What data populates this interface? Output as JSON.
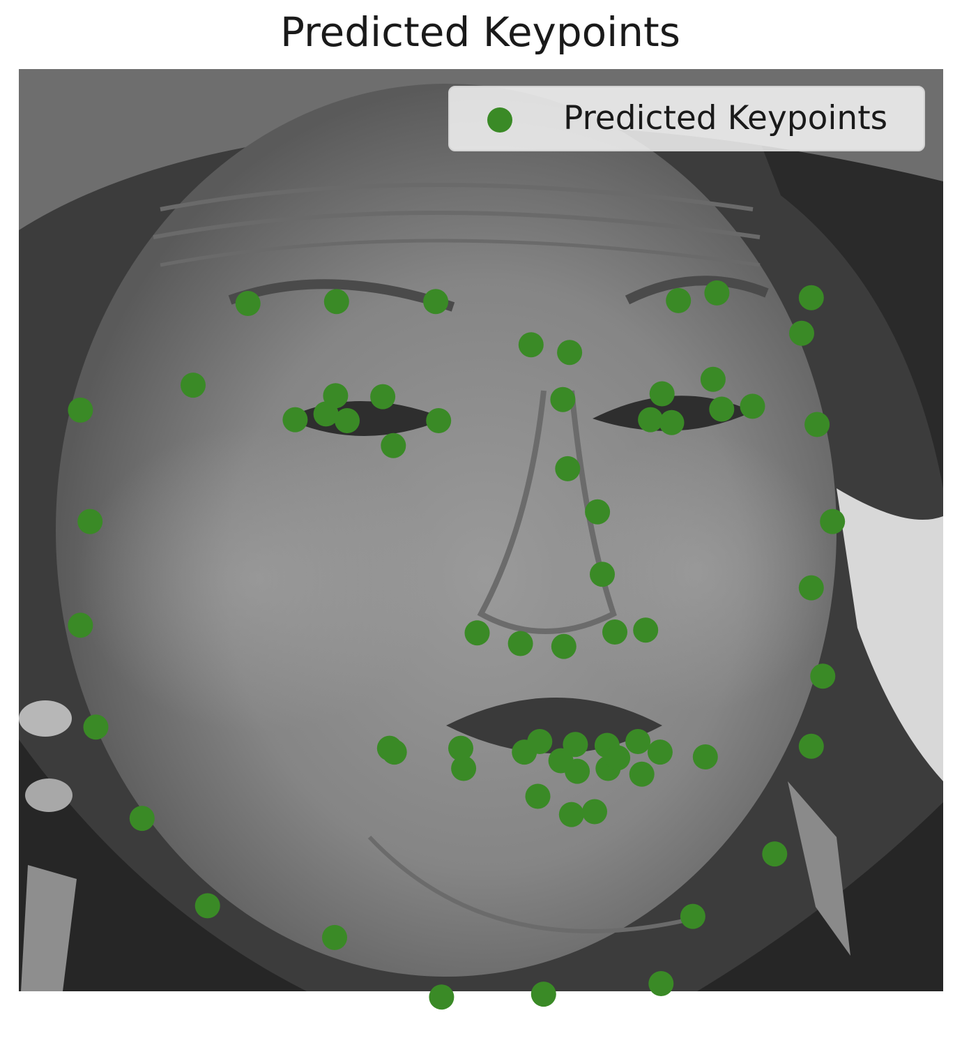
{
  "chart_data": {
    "type": "scatter",
    "title": "Predicted Keypoints",
    "xlabel": "",
    "ylabel": "",
    "xlim": [
      0,
      96
    ],
    "ylim": [
      96,
      0
    ],
    "axes_visible": false,
    "grid": false,
    "background": "grayscale face photograph",
    "legend": {
      "placement": "top-right",
      "entries": [
        "Predicted Keypoints"
      ]
    },
    "series": [
      {
        "name": "Predicted Keypoints",
        "color": "#3a8a26",
        "points": [
          [
            6.4,
            35.5
          ],
          [
            7.4,
            47.1
          ],
          [
            6.4,
            57.9
          ],
          [
            8.0,
            68.5
          ],
          [
            12.8,
            78.0
          ],
          [
            19.6,
            87.1
          ],
          [
            32.8,
            90.4
          ],
          [
            43.9,
            96.6
          ],
          [
            54.5,
            96.3
          ],
          [
            66.7,
            95.2
          ],
          [
            70.0,
            88.2
          ],
          [
            78.5,
            81.7
          ],
          [
            82.3,
            70.5
          ],
          [
            83.5,
            63.2
          ],
          [
            82.3,
            54.0
          ],
          [
            84.5,
            47.1
          ],
          [
            82.9,
            37.0
          ],
          [
            23.8,
            24.4
          ],
          [
            33.0,
            24.2
          ],
          [
            43.3,
            24.2
          ],
          [
            53.2,
            28.7
          ],
          [
            57.2,
            29.5
          ],
          [
            68.5,
            24.1
          ],
          [
            72.5,
            23.3
          ],
          [
            82.3,
            23.8
          ],
          [
            81.3,
            27.5
          ],
          [
            56.5,
            34.4
          ],
          [
            57.0,
            41.6
          ],
          [
            60.1,
            46.1
          ],
          [
            60.6,
            52.6
          ],
          [
            47.6,
            58.7
          ],
          [
            52.1,
            59.8
          ],
          [
            56.6,
            60.1
          ],
          [
            61.9,
            58.6
          ],
          [
            65.1,
            58.4
          ],
          [
            18.1,
            32.9
          ],
          [
            28.7,
            36.5
          ],
          [
            32.9,
            34.0
          ],
          [
            34.1,
            36.6
          ],
          [
            37.8,
            34.1
          ],
          [
            38.9,
            39.2
          ],
          [
            43.6,
            36.6
          ],
          [
            31.9,
            35.9
          ],
          [
            65.6,
            36.5
          ],
          [
            67.8,
            36.8
          ],
          [
            66.8,
            33.8
          ],
          [
            72.1,
            32.3
          ],
          [
            73.0,
            35.4
          ],
          [
            76.2,
            35.1
          ],
          [
            38.5,
            70.7
          ],
          [
            39.0,
            71.1
          ],
          [
            45.9,
            70.7
          ],
          [
            46.2,
            72.8
          ],
          [
            52.5,
            71.1
          ],
          [
            54.1,
            70.0
          ],
          [
            56.3,
            72.0
          ],
          [
            57.8,
            70.3
          ],
          [
            58.0,
            73.1
          ],
          [
            61.1,
            70.4
          ],
          [
            61.2,
            72.8
          ],
          [
            62.2,
            71.7
          ],
          [
            64.3,
            70.0
          ],
          [
            64.7,
            73.4
          ],
          [
            66.6,
            71.1
          ],
          [
            71.3,
            71.6
          ],
          [
            53.9,
            75.7
          ],
          [
            57.4,
            77.6
          ],
          [
            59.8,
            77.3
          ]
        ]
      }
    ]
  }
}
